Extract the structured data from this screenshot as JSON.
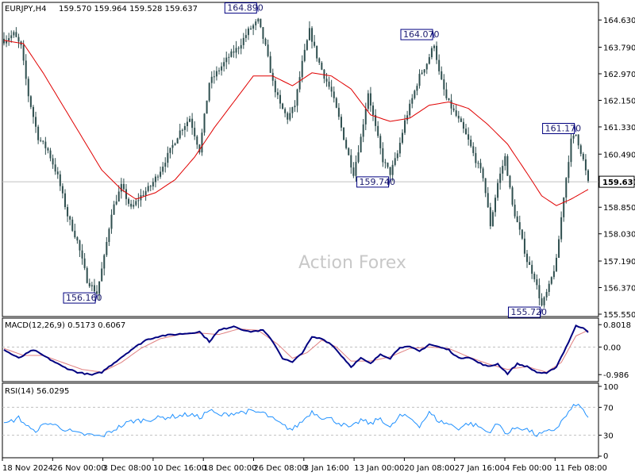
{
  "header": {
    "symbol": "EURJPY,H4",
    "ohlc": "159.570 159.964 159.528 159.637",
    "macd_label": "MACD(12,26,9) 0.5173 0.6067",
    "rsi_label": "RSI(14) 56.0295"
  },
  "watermark": "Action Forex",
  "colors": {
    "candle": "#2f4f4f",
    "ma": "#e00000",
    "macd": "#000080",
    "signal": "#e08080",
    "rsi": "#1e90ff",
    "grid": "#c0c0c0",
    "price_line": "#c0c0c0",
    "annotation_border": "#000080"
  },
  "chart_data": [
    {
      "type": "line",
      "name": "price",
      "ylim": [
        155.55,
        165.1
      ],
      "ytick_labels": [
        "164.630",
        "163.790",
        "162.970",
        "162.150",
        "161.330",
        "160.490",
        "159.637",
        "158.850",
        "158.030",
        "157.190",
        "156.370",
        "155.550"
      ],
      "current_price": "159.637",
      "x_labels": [
        "18 Nov 2024",
        "26 Nov 00:00",
        "3 Dec 08:00",
        "10 Dec 16:00",
        "18 Dec 00:00",
        "26 Dec 08:00",
        "3 Jan 16:00",
        "13 Jan 00:00",
        "20 Jan 08:00",
        "27 Jan 16:00",
        "4 Feb 00:00",
        "11 Feb 08:00"
      ],
      "close_keypoints": [
        [
          0,
          164.0
        ],
        [
          4,
          164.2
        ],
        [
          7,
          163.8
        ],
        [
          10,
          162.3
        ],
        [
          14,
          161.0
        ],
        [
          18,
          160.6
        ],
        [
          22,
          159.8
        ],
        [
          26,
          158.6
        ],
        [
          30,
          157.8
        ],
        [
          34,
          156.6
        ],
        [
          38,
          156.2
        ],
        [
          41,
          157.3
        ],
        [
          44,
          158.7
        ],
        [
          48,
          159.5
        ],
        [
          52,
          158.8
        ],
        [
          56,
          159.2
        ],
        [
          60,
          159.5
        ],
        [
          64,
          160.0
        ],
        [
          68,
          160.6
        ],
        [
          72,
          161.2
        ],
        [
          76,
          161.6
        ],
        [
          80,
          160.6
        ],
        [
          84,
          162.7
        ],
        [
          88,
          163.1
        ],
        [
          92,
          163.5
        ],
        [
          96,
          163.8
        ],
        [
          100,
          164.3
        ],
        [
          104,
          164.6
        ],
        [
          107,
          163.8
        ],
        [
          110,
          162.7
        ],
        [
          113,
          162.0
        ],
        [
          116,
          161.6
        ],
        [
          119,
          162.0
        ],
        [
          122,
          163.3
        ],
        [
          125,
          164.3
        ],
        [
          128,
          163.5
        ],
        [
          131,
          162.9
        ],
        [
          134,
          162.4
        ],
        [
          137,
          161.6
        ],
        [
          140,
          160.7
        ],
        [
          143,
          159.9
        ],
        [
          146,
          161.0
        ],
        [
          149,
          162.4
        ],
        [
          152,
          161.3
        ],
        [
          155,
          160.3
        ],
        [
          158,
          159.9
        ],
        [
          161,
          160.5
        ],
        [
          164,
          161.5
        ],
        [
          167,
          162.2
        ],
        [
          170,
          162.9
        ],
        [
          173,
          163.3
        ],
        [
          176,
          163.9
        ],
        [
          178,
          163.0
        ],
        [
          181,
          162.2
        ],
        [
          184,
          161.8
        ],
        [
          187,
          161.4
        ],
        [
          190,
          160.9
        ],
        [
          193,
          160.3
        ],
        [
          196,
          159.8
        ],
        [
          199,
          158.3
        ],
        [
          202,
          159.6
        ],
        [
          205,
          160.4
        ],
        [
          208,
          158.9
        ],
        [
          211,
          158.1
        ],
        [
          214,
          157.2
        ],
        [
          217,
          156.7
        ],
        [
          220,
          155.8
        ],
        [
          223,
          156.4
        ],
        [
          226,
          157.2
        ],
        [
          229,
          159.2
        ],
        [
          232,
          160.9
        ],
        [
          234,
          161.1
        ],
        [
          237,
          160.3
        ],
        [
          239,
          159.6
        ]
      ],
      "ma_keypoints": [
        [
          0,
          164.0
        ],
        [
          8,
          163.9
        ],
        [
          16,
          163.0
        ],
        [
          24,
          162.0
        ],
        [
          32,
          161.0
        ],
        [
          40,
          160.0
        ],
        [
          48,
          159.4
        ],
        [
          54,
          159.1
        ],
        [
          62,
          159.3
        ],
        [
          70,
          159.7
        ],
        [
          78,
          160.4
        ],
        [
          86,
          161.3
        ],
        [
          94,
          162.1
        ],
        [
          102,
          162.9
        ],
        [
          110,
          162.9
        ],
        [
          118,
          162.6
        ],
        [
          126,
          163.0
        ],
        [
          134,
          162.9
        ],
        [
          142,
          162.5
        ],
        [
          150,
          161.7
        ],
        [
          158,
          161.5
        ],
        [
          166,
          161.6
        ],
        [
          174,
          162.0
        ],
        [
          182,
          162.1
        ],
        [
          190,
          161.9
        ],
        [
          198,
          161.4
        ],
        [
          206,
          160.8
        ],
        [
          214,
          159.9
        ],
        [
          220,
          159.2
        ],
        [
          226,
          158.9
        ],
        [
          232,
          159.1
        ],
        [
          239,
          159.4
        ]
      ],
      "annotations": [
        {
          "i": 104,
          "text": "164.890",
          "kind": "high",
          "value": 164.89
        },
        {
          "i": 38,
          "text": "156.160",
          "kind": "low",
          "value": 156.16
        },
        {
          "i": 176,
          "text": "164.070",
          "kind": "high",
          "value": 164.07
        },
        {
          "i": 158,
          "text": "159.740",
          "kind": "low",
          "value": 159.74
        },
        {
          "i": 234,
          "text": "161.170",
          "kind": "high",
          "value": 161.17
        },
        {
          "i": 220,
          "text": "155.720",
          "kind": "low",
          "value": 155.72
        }
      ]
    },
    {
      "type": "line",
      "name": "MACD(12,26,9)",
      "ylim": [
        -1.15,
        0.95
      ],
      "ytick_labels": [
        "0.8018",
        "0.00",
        "-0.986"
      ],
      "main_value": 0.5173,
      "signal_value": 0.6067,
      "macd_keypoints": [
        [
          0,
          -0.1
        ],
        [
          6,
          -0.4
        ],
        [
          12,
          -0.1
        ],
        [
          18,
          -0.4
        ],
        [
          24,
          -0.7
        ],
        [
          30,
          -0.9
        ],
        [
          36,
          -1.0
        ],
        [
          40,
          -0.9
        ],
        [
          46,
          -0.5
        ],
        [
          52,
          -0.1
        ],
        [
          58,
          0.25
        ],
        [
          64,
          0.4
        ],
        [
          70,
          0.45
        ],
        [
          76,
          0.5
        ],
        [
          80,
          0.55
        ],
        [
          84,
          0.2
        ],
        [
          88,
          0.6
        ],
        [
          94,
          0.75
        ],
        [
          100,
          0.55
        ],
        [
          106,
          0.6
        ],
        [
          110,
          0.2
        ],
        [
          114,
          -0.4
        ],
        [
          118,
          -0.55
        ],
        [
          122,
          -0.2
        ],
        [
          126,
          0.35
        ],
        [
          130,
          0.3
        ],
        [
          134,
          0.1
        ],
        [
          138,
          -0.3
        ],
        [
          142,
          -0.7
        ],
        [
          146,
          -0.4
        ],
        [
          150,
          -0.6
        ],
        [
          154,
          -0.25
        ],
        [
          158,
          -0.4
        ],
        [
          162,
          0.0
        ],
        [
          166,
          0.0
        ],
        [
          170,
          -0.15
        ],
        [
          174,
          0.1
        ],
        [
          178,
          0.0
        ],
        [
          182,
          -0.1
        ],
        [
          186,
          -0.4
        ],
        [
          190,
          -0.35
        ],
        [
          194,
          -0.55
        ],
        [
          198,
          -0.7
        ],
        [
          202,
          -0.6
        ],
        [
          206,
          -0.95
        ],
        [
          210,
          -0.6
        ],
        [
          214,
          -0.7
        ],
        [
          218,
          -0.9
        ],
        [
          222,
          -0.95
        ],
        [
          226,
          -0.7
        ],
        [
          230,
          0.0
        ],
        [
          234,
          0.75
        ],
        [
          237,
          0.7
        ],
        [
          239,
          0.55
        ]
      ],
      "signal_keypoints": [
        [
          0,
          -0.05
        ],
        [
          8,
          -0.3
        ],
        [
          16,
          -0.3
        ],
        [
          24,
          -0.55
        ],
        [
          32,
          -0.8
        ],
        [
          40,
          -0.9
        ],
        [
          48,
          -0.55
        ],
        [
          56,
          -0.05
        ],
        [
          64,
          0.3
        ],
        [
          72,
          0.45
        ],
        [
          80,
          0.5
        ],
        [
          88,
          0.45
        ],
        [
          96,
          0.65
        ],
        [
          104,
          0.6
        ],
        [
          112,
          0.1
        ],
        [
          118,
          -0.4
        ],
        [
          124,
          -0.2
        ],
        [
          130,
          0.25
        ],
        [
          136,
          0.0
        ],
        [
          142,
          -0.5
        ],
        [
          150,
          -0.5
        ],
        [
          158,
          -0.35
        ],
        [
          166,
          -0.05
        ],
        [
          174,
          0.0
        ],
        [
          182,
          -0.05
        ],
        [
          190,
          -0.35
        ],
        [
          198,
          -0.6
        ],
        [
          206,
          -0.8
        ],
        [
          214,
          -0.7
        ],
        [
          222,
          -0.9
        ],
        [
          228,
          -0.55
        ],
        [
          234,
          0.4
        ],
        [
          239,
          0.6
        ]
      ]
    },
    {
      "type": "line",
      "name": "RSI(14)",
      "ylim": [
        0,
        100
      ],
      "ytick_labels": [
        "100",
        "70",
        "30",
        "0"
      ],
      "levels": [
        70,
        30
      ],
      "current": 56.0295,
      "keypoints": [
        [
          0,
          45
        ],
        [
          6,
          55
        ],
        [
          12,
          35
        ],
        [
          18,
          48
        ],
        [
          24,
          40
        ],
        [
          30,
          32
        ],
        [
          36,
          30
        ],
        [
          40,
          28
        ],
        [
          46,
          40
        ],
        [
          52,
          50
        ],
        [
          58,
          52
        ],
        [
          64,
          55
        ],
        [
          70,
          57
        ],
        [
          76,
          60
        ],
        [
          80,
          55
        ],
        [
          84,
          66
        ],
        [
          88,
          58
        ],
        [
          94,
          62
        ],
        [
          100,
          64
        ],
        [
          106,
          62
        ],
        [
          110,
          53
        ],
        [
          114,
          44
        ],
        [
          118,
          38
        ],
        [
          122,
          50
        ],
        [
          126,
          64
        ],
        [
          130,
          56
        ],
        [
          134,
          53
        ],
        [
          138,
          46
        ],
        [
          142,
          40
        ],
        [
          146,
          52
        ],
        [
          150,
          46
        ],
        [
          154,
          55
        ],
        [
          158,
          40
        ],
        [
          162,
          58
        ],
        [
          166,
          55
        ],
        [
          170,
          44
        ],
        [
          174,
          62
        ],
        [
          178,
          50
        ],
        [
          182,
          46
        ],
        [
          186,
          40
        ],
        [
          190,
          47
        ],
        [
          194,
          43
        ],
        [
          198,
          34
        ],
        [
          202,
          46
        ],
        [
          206,
          32
        ],
        [
          210,
          42
        ],
        [
          214,
          38
        ],
        [
          218,
          30
        ],
        [
          222,
          34
        ],
        [
          226,
          40
        ],
        [
          230,
          58
        ],
        [
          234,
          75
        ],
        [
          237,
          66
        ],
        [
          239,
          56
        ]
      ]
    }
  ]
}
